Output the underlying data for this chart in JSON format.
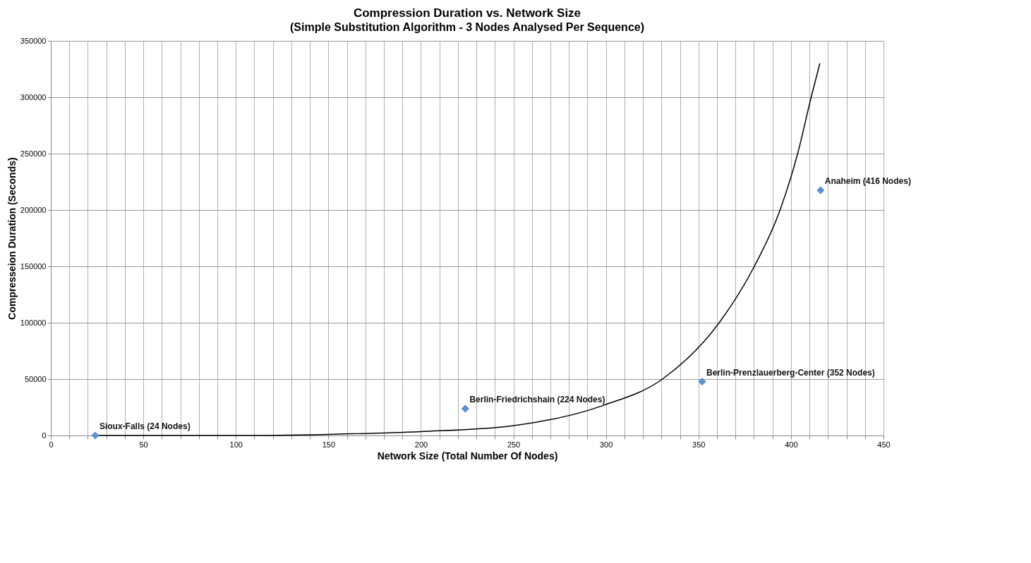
{
  "chart_data": {
    "type": "scatter",
    "title": "Compression Duration vs. Network Size",
    "subtitle": "(Simple Substitution Algorithm - 3 Nodes Analysed Per Sequence)",
    "xlabel": "Network Size (Total Number Of Nodes)",
    "ylabel": "Compresseion Duration (Seconds)",
    "series": [
      {
        "type": "line",
        "color": "#000000",
        "x": [
          24,
          100,
          150,
          200,
          248.8,
          298.3,
          330.5,
          361.2,
          380.2,
          394.1,
          403.6,
          410.9,
          415.6
        ],
        "values": [
          0,
          0,
          1000,
          3500,
          8500,
          26500,
          50000,
          100000,
          150000,
          200000,
          250000,
          300000,
          330000
        ]
      },
      {
        "color": "#5b8fd6",
        "marker": "diamond",
        "x": [
          24,
          224,
          352,
          416
        ],
        "values": [
          0,
          23700,
          47800,
          217500
        ]
      }
    ],
    "annotations": [
      {
        "text": "Sioux-Falls (24 Nodes)",
        "x": 24,
        "y": 0
      },
      {
        "text": "Berlin-Friedrichshain (224 Nodes)",
        "x": 224,
        "y": 23700
      },
      {
        "text": "Berlin-Prenzlauerberg-Center (352 Nodes)",
        "x": 352,
        "y": 47800
      },
      {
        "text": "Anaheim (416 Nodes)",
        "x": 416,
        "y": 217500
      }
    ],
    "xlim": [
      0,
      450
    ],
    "ylim": [
      0,
      350000
    ],
    "xticks": [
      0,
      {
        "value": 10,
        "label": null
      },
      {
        "value": 20,
        "label": null
      },
      {
        "value": 30,
        "label": null
      },
      {
        "value": 40,
        "label": null
      },
      50,
      {
        "value": 60,
        "label": null
      },
      {
        "value": 70,
        "label": null
      },
      {
        "value": 80,
        "label": null
      },
      {
        "value": 90,
        "label": null
      },
      100,
      {
        "value": 110,
        "label": null
      },
      {
        "value": 120,
        "label": null
      },
      {
        "value": 130,
        "label": null
      },
      {
        "value": 140,
        "label": null
      },
      150,
      {
        "value": 160,
        "label": null
      },
      {
        "value": 170,
        "label": null
      },
      {
        "value": 180,
        "label": null
      },
      {
        "value": 190,
        "label": null
      },
      200,
      {
        "value": 210,
        "label": null
      },
      {
        "value": 220,
        "label": null
      },
      {
        "value": 230,
        "label": null
      },
      {
        "value": 240,
        "label": null
      },
      250,
      {
        "value": 260,
        "label": null
      },
      {
        "value": 270,
        "label": null
      },
      {
        "value": 280,
        "label": null
      },
      {
        "value": 290,
        "label": null
      },
      300,
      {
        "value": 310,
        "label": null
      },
      {
        "value": 320,
        "label": null
      },
      {
        "value": 330,
        "label": null
      },
      {
        "value": 340,
        "label": null
      },
      350,
      {
        "value": 360,
        "label": null
      },
      {
        "value": 370,
        "label": null
      },
      {
        "value": 380,
        "label": null
      },
      {
        "value": 390,
        "label": null
      },
      400,
      {
        "value": 410,
        "label": null
      },
      {
        "value": 420,
        "label": null
      },
      {
        "value": 430,
        "label": null
      },
      {
        "value": 440,
        "label": null
      },
      450
    ],
    "yticks": [
      0,
      50000,
      100000,
      150000,
      200000,
      250000,
      300000,
      350000
    ],
    "grid": true
  }
}
